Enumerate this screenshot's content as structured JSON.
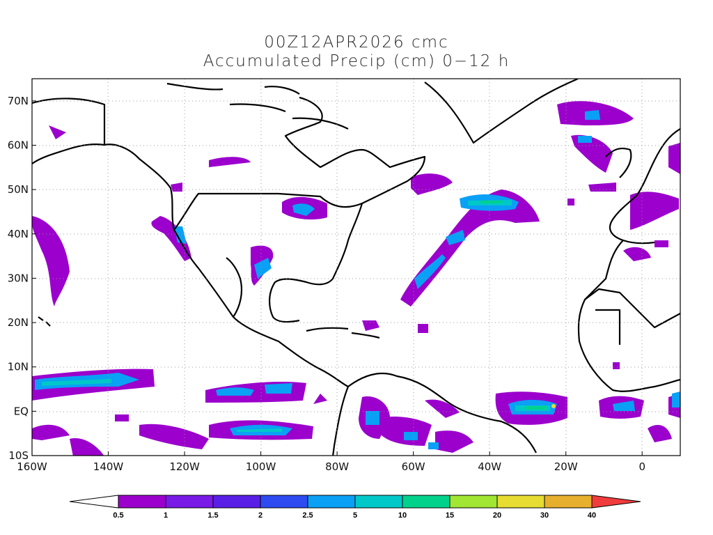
{
  "title": {
    "line1": "00Z12APR2026 cmc",
    "line2": "Accumulated Precip (cm) 0−12 h"
  },
  "map": {
    "lat_labels": [
      "70N",
      "60N",
      "50N",
      "40N",
      "30N",
      "20N",
      "10N",
      "EQ",
      "10S"
    ],
    "lon_labels": [
      "160W",
      "140W",
      "120W",
      "100W",
      "80W",
      "60W",
      "40W",
      "20W",
      "0"
    ],
    "lon_range": [
      -160,
      10
    ],
    "lat_range": [
      -10,
      75
    ],
    "gridlines": "dotted"
  },
  "colorbar": {
    "levels": [
      "0.5",
      "1",
      "1.5",
      "2",
      "2.5",
      "5",
      "10",
      "15",
      "20",
      "30",
      "40"
    ],
    "colors": [
      "#9b00cc",
      "#7a1ae6",
      "#5a1fe6",
      "#2d4bf0",
      "#0aa0f5",
      "#00c8c8",
      "#00d28c",
      "#a0e632",
      "#e6dc32",
      "#e6af2d",
      "#f08228",
      "#f03c3c"
    ]
  }
}
